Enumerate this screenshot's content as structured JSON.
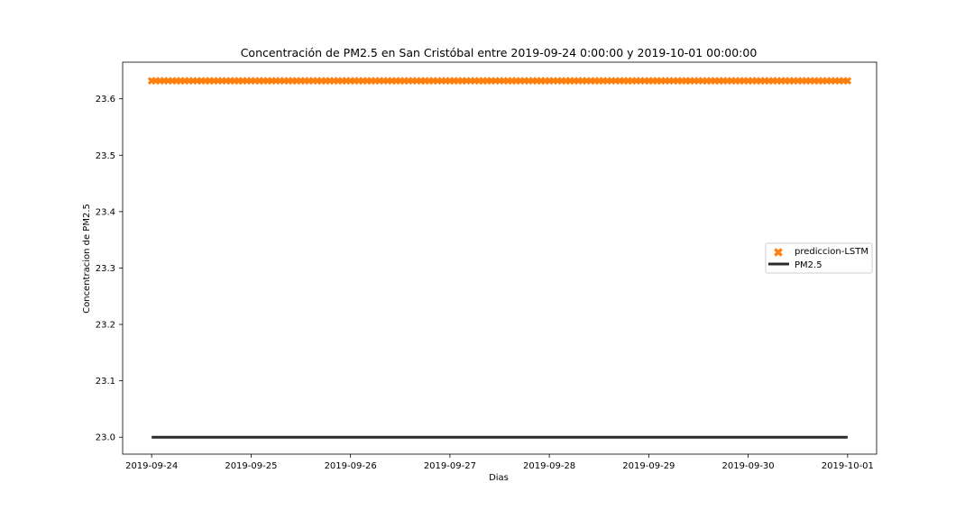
{
  "chart_data": {
    "type": "line",
    "title": "Concentración de PM2.5 en San Cristóbal entre 2019-09-24 0:00:00 y 2019-10-01 00:00:00",
    "xlabel": "Dias",
    "ylabel": "Concentracion de PM2.5",
    "x_range": [
      "2019-09-24",
      "2019-10-01"
    ],
    "xlim": [
      "2019-09-23 17:00",
      "2019-10-01 07:00"
    ],
    "ylim": [
      22.97,
      23.665
    ],
    "x_ticks": [
      "2019-09-24",
      "2019-09-25",
      "2019-09-26",
      "2019-09-27",
      "2019-09-28",
      "2019-09-29",
      "2019-09-30",
      "2019-10-01"
    ],
    "y_ticks": [
      "23.0",
      "23.1",
      "23.2",
      "23.3",
      "23.4",
      "23.5",
      "23.6"
    ],
    "grid": false,
    "legend_position": "center right",
    "series": [
      {
        "name": "prediccion-LSTM",
        "kind": "scatter",
        "marker": "X",
        "color": "#ff7f0e",
        "x_start": "2019-09-24 00:00",
        "x_end": "2019-10-01 00:00",
        "step_hours": 1,
        "y": 23.632
      },
      {
        "name": "PM2.5",
        "kind": "line",
        "color": "#2b2b2b",
        "x_start": "2019-09-24 00:00",
        "x_end": "2019-10-01 00:00",
        "y": 23.0
      }
    ]
  }
}
